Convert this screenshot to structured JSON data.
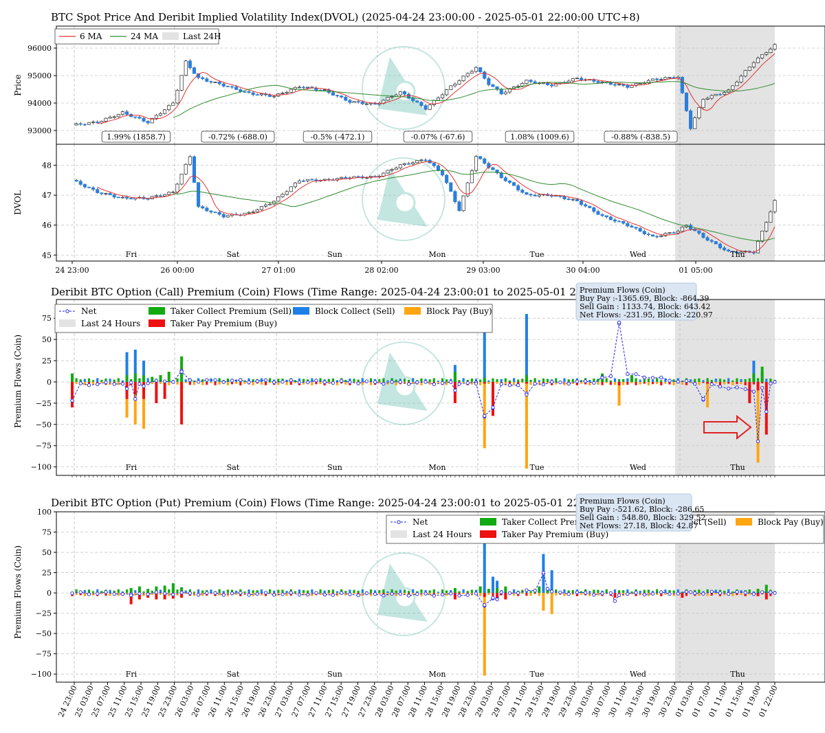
{
  "chart_data": [
    {
      "type": "candlestick",
      "title": "BTC Spot Price And Deribit Implied Volatility Index(DVOL) (2025-04-24 23:00:00 - 2025-05-01 22:00:00 UTC+8)",
      "ylabel": "Price",
      "ylim": [
        92500,
        96800
      ],
      "yticks": [
        "93000",
        "94000",
        "95000",
        "96000"
      ],
      "legend": [
        "6 MA",
        "24 MA",
        "Last 24H"
      ],
      "legend_position": "top-left",
      "grid": true,
      "highlight_last_24h": true,
      "x_range_hours": [
        0,
        167
      ],
      "ma6_color": "#e03030",
      "ma24_color": "#2e8b2e",
      "up_color": "#ffffff",
      "down_color": "#2a7fdc",
      "series": [
        {
          "name": "close",
          "x_hours": [
            0,
            6,
            12,
            18,
            24,
            27,
            30,
            36,
            42,
            48,
            54,
            60,
            66,
            72,
            78,
            84,
            90,
            96,
            99,
            102,
            108,
            114,
            120,
            126,
            132,
            138,
            144,
            147,
            150,
            156,
            162,
            167
          ],
          "values": [
            93200,
            93300,
            93650,
            93300,
            94000,
            95500,
            94900,
            94650,
            94350,
            94250,
            94600,
            94450,
            94050,
            93950,
            94400,
            93800,
            94600,
            95300,
            94700,
            94350,
            94800,
            94650,
            94900,
            94750,
            94600,
            94850,
            94950,
            93100,
            94150,
            94450,
            95500,
            96100
          ]
        }
      ],
      "annotations": [
        "1.99% (1858.7)",
        "-0.72% (-688.0)",
        "-0.5% (-472.1)",
        "-0.07% (-67.6)",
        "1.08% (1009.6)",
        "-0.88% (-838.5)"
      ]
    },
    {
      "type": "candlestick",
      "ylabel": "DVOL",
      "ylim": [
        44.8,
        48.7
      ],
      "yticks": [
        "45",
        "46",
        "47",
        "48"
      ],
      "day_labels": [
        "Fri",
        "Sat",
        "Sun",
        "Mon",
        "Tue",
        "Wed",
        "Thu"
      ],
      "xtick_labels": [
        "24 23:00",
        "26 00:00",
        "27 01:00",
        "28 02:00",
        "29 03:00",
        "30 04:00",
        "01 05:00"
      ],
      "series": [
        {
          "name": "close",
          "x_hours": [
            0,
            6,
            12,
            18,
            24,
            28,
            30,
            36,
            42,
            48,
            54,
            60,
            66,
            72,
            78,
            84,
            88,
            92,
            96,
            102,
            108,
            114,
            120,
            126,
            132,
            138,
            144,
            146,
            150,
            156,
            162,
            167
          ],
          "values": [
            47.5,
            47.1,
            46.9,
            46.9,
            47.1,
            48.3,
            46.6,
            46.3,
            46.4,
            46.8,
            47.5,
            47.5,
            47.6,
            47.6,
            48.0,
            48.2,
            47.7,
            46.5,
            48.3,
            47.6,
            47.0,
            47.0,
            46.8,
            46.3,
            46.0,
            45.6,
            45.8,
            46.0,
            45.6,
            45.1,
            45.1,
            46.8
          ]
        }
      ]
    },
    {
      "type": "bar",
      "title": "Deribit BTC Option (Call) Premium (Coin) Flows (Time Range: 2025-04-24 23:00:01 to 2025-05-01 22:13:46 UTC+8)",
      "ylabel": "Premium Flows (Coin)",
      "ylim": [
        -110,
        97
      ],
      "yticks": [
        "75",
        "50",
        "25",
        "0",
        "−25",
        "−50",
        "−75",
        "−100"
      ],
      "day_labels": [
        "Fri",
        "Sat",
        "Sun",
        "Mon",
        "Tue",
        "Wed",
        "Thu"
      ],
      "legend": [
        "Net",
        "Last 24 Hours",
        "Taker Collect Premium (Sell)",
        "Taker Pay Premium (Buy)",
        "Block Collect (Sell)",
        "Block Pay (Buy)"
      ],
      "legend_position": "top-left",
      "info_box": [
        "Premium Flows (Coin)",
        "Buy Pay  :-1365.69, Block: -864.39",
        "Sell Gain : 1133.74, Block: 643.42",
        "Net Flows: -231.95, Block: -220.97"
      ],
      "colors": {
        "taker_collect": "#11aa11",
        "taker_pay": "#ee1111",
        "block_collect": "#1f7fe8",
        "block_pay": "#ffa510",
        "net": "#2222dd"
      },
      "series": [
        {
          "name": "Block Collect (Sell)",
          "x_hours": [
            13,
            15,
            17,
            26,
            91,
            98,
            108,
            133,
            162,
            164
          ],
          "values": [
            35,
            38,
            25,
            15,
            20,
            60,
            80,
            8,
            25,
            12
          ]
        },
        {
          "name": "Taker Collect Premium (Sell)",
          "x_hours": [
            0,
            13,
            15,
            17,
            19,
            21,
            23,
            26,
            91,
            98,
            108,
            126,
            133,
            162,
            164
          ],
          "values": [
            10,
            8,
            10,
            8,
            6,
            8,
            12,
            30,
            12,
            5,
            8,
            10,
            8,
            10,
            18
          ]
        },
        {
          "name": "Block Pay (Buy)",
          "x_hours": [
            13,
            15,
            17,
            26,
            98,
            108,
            130,
            151,
            163
          ],
          "values": [
            -42,
            -50,
            -55,
            -35,
            -78,
            -102,
            -28,
            -30,
            -95
          ]
        },
        {
          "name": "Taker Pay Premium (Buy)",
          "x_hours": [
            0,
            13,
            15,
            17,
            20,
            22,
            26,
            91,
            98,
            100,
            108,
            130,
            151,
            161,
            163,
            165
          ],
          "values": [
            -30,
            -20,
            -15,
            -20,
            -25,
            -20,
            -50,
            -25,
            -2,
            -40,
            -2,
            -4,
            -2,
            -25,
            -10,
            -62
          ]
        },
        {
          "name": "Net",
          "x_hours": [
            0,
            13,
            15,
            17,
            26,
            91,
            96,
            98,
            100,
            108,
            126,
            130,
            150,
            163,
            165,
            167
          ],
          "values": [
            -22,
            -8,
            -20,
            -5,
            12,
            -10,
            -2,
            -40,
            -30,
            -15,
            5,
            70,
            -20,
            -70,
            -35,
            0
          ]
        }
      ],
      "annotations": [
        "red outline arrow pointing right toward Thu spike"
      ]
    },
    {
      "type": "bar",
      "title": "Deribit BTC Option (Put) Premium (Coin) Flows (Time Range: 2025-04-24 23:00:01 to 2025-05-01 22:13:46 UTC+8)",
      "ylabel": "Premium Flows (Coin)",
      "ylim": [
        -110,
        100
      ],
      "yticks": [
        "100",
        "75",
        "50",
        "25",
        "0",
        "−25",
        "−50",
        "−75",
        "−100"
      ],
      "day_labels": [
        "Fri",
        "Sat",
        "Sun",
        "Mon",
        "Tue",
        "Wed",
        "Thu"
      ],
      "legend": [
        "Net",
        "Last 24 Hours",
        "Taker Collect Premium (Sell)",
        "Taker Pay Premium (Buy)",
        "Block Collect (Sell)",
        "Block Pay (Buy)"
      ],
      "legend_position": "top-right",
      "info_box": [
        "Premium Flows (Coin)",
        "Buy Pay  :-521.62, Block: -286.65",
        "Sell Gain : 548.80, Block: 329.52",
        "Net Flows: 27.18, Block: 42.87"
      ],
      "xtick_labels": [
        "24 23:00",
        "25 03:00",
        "25 07:00",
        "25 11:00",
        "25 15:00",
        "25 19:00",
        "25 23:00",
        "26 03:00",
        "26 07:00",
        "26 11:00",
        "26 15:00",
        "26 19:00",
        "26 23:00",
        "27 03:00",
        "27 07:00",
        "27 11:00",
        "27 15:00",
        "27 19:00",
        "27 23:00",
        "28 03:00",
        "28 07:00",
        "28 11:00",
        "28 15:00",
        "28 19:00",
        "28 23:00",
        "29 03:00",
        "29 07:00",
        "29 11:00",
        "29 15:00",
        "29 19:00",
        "29 23:00",
        "30 03:00",
        "30 07:00",
        "30 11:00",
        "30 15:00",
        "30 19:00",
        "30 23:00",
        "01 03:00",
        "01 07:00",
        "01 11:00",
        "01 15:00",
        "01 19:00",
        "01 22:00"
      ],
      "series": [
        {
          "name": "Block Collect (Sell)",
          "x_hours": [
            98,
            100,
            101,
            112,
            114
          ],
          "values": [
            90,
            20,
            15,
            48,
            28
          ]
        },
        {
          "name": "Taker Collect Premium (Sell)",
          "x_hours": [
            14,
            16,
            18,
            20,
            22,
            24,
            26,
            91,
            97,
            99,
            101,
            103,
            111,
            113,
            163,
            165
          ],
          "values": [
            6,
            8,
            5,
            8,
            9,
            12,
            7,
            6,
            8,
            5,
            6,
            8,
            8,
            6,
            5,
            10
          ]
        },
        {
          "name": "Block Pay (Buy)",
          "x_hours": [
            98,
            103,
            112,
            114
          ],
          "values": [
            -102,
            -8,
            -22,
            -26
          ]
        },
        {
          "name": "Taker Pay Premium (Buy)",
          "x_hours": [
            14,
            16,
            18,
            20,
            22,
            24,
            26,
            91,
            98,
            101,
            103,
            129,
            145,
            163,
            165
          ],
          "values": [
            -14,
            -8,
            -6,
            -8,
            -8,
            -7,
            -6,
            -8,
            -5,
            -7,
            -8,
            -6,
            -6,
            -4,
            -8
          ]
        },
        {
          "name": "Net",
          "x_hours": [
            14,
            98,
            100,
            101,
            112,
            113,
            129,
            147,
            167
          ],
          "values": [
            -3,
            -15,
            -6,
            -8,
            25,
            5,
            -10,
            1,
            0
          ]
        }
      ]
    }
  ]
}
